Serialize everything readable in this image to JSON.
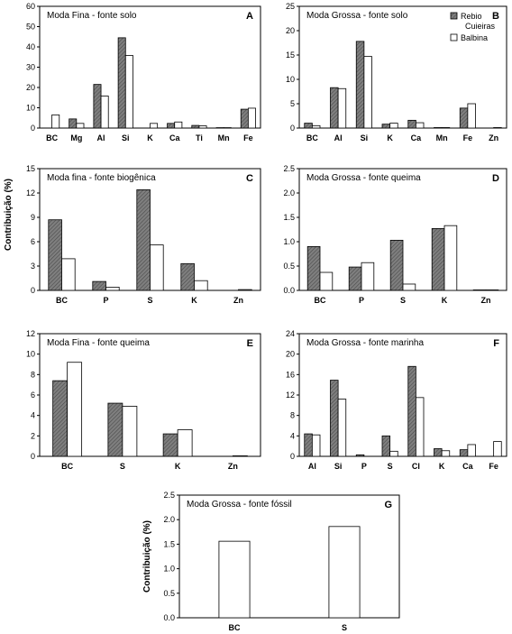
{
  "figure": {
    "ylabel": "Contribuição (%)",
    "colors": {
      "Rebio Cuieiras": "#7f7f7f",
      "Balbina": "#ffffff",
      "hatch_line": "#3a3a3a"
    }
  },
  "chart_data": [
    {
      "id": "A",
      "letter": "A",
      "type": "bar",
      "title": "Moda Fina -  fonte solo",
      "categories": [
        "BC",
        "Mg",
        "Al",
        "Si",
        "K",
        "Ca",
        "Ti",
        "Mn",
        "Fe"
      ],
      "yticks": [
        0,
        10,
        20,
        30,
        40,
        50,
        60
      ],
      "ylim": [
        0,
        60
      ],
      "series": [
        {
          "name": "Rebio Cuieiras",
          "values": [
            0,
            4.5,
            21.5,
            44.5,
            0,
            2.3,
            1.3,
            0.2,
            9.3
          ]
        },
        {
          "name": "Balbina",
          "values": [
            6.5,
            2.3,
            15.8,
            35.8,
            2.3,
            3.0,
            1.1,
            0.2,
            9.8
          ]
        }
      ]
    },
    {
      "id": "B",
      "letter": "B",
      "type": "bar",
      "title": "Moda Grossa - fonte solo",
      "categories": [
        "BC",
        "Al",
        "Si",
        "K",
        "Ca",
        "Mn",
        "Fe",
        "Zn"
      ],
      "yticks": [
        0,
        5,
        10,
        15,
        20,
        25
      ],
      "ylim": [
        0,
        25
      ],
      "legend": [
        "Rebio Cuieiras",
        "Balbina"
      ],
      "series": [
        {
          "name": "Rebio Cuieiras",
          "values": [
            1.0,
            8.3,
            17.8,
            0.8,
            1.6,
            0.1,
            4.1,
            0
          ]
        },
        {
          "name": "Balbina",
          "values": [
            0.5,
            8.1,
            14.7,
            1.0,
            1.1,
            0.1,
            5.0,
            0.1
          ]
        }
      ]
    },
    {
      "id": "C",
      "letter": "C",
      "type": "bar",
      "title": "Moda fina - fonte biogênica",
      "categories": [
        "BC",
        "P",
        "S",
        "K",
        "Zn"
      ],
      "yticks": [
        0,
        3,
        6,
        9,
        12,
        15
      ],
      "ylim": [
        0,
        15
      ],
      "series": [
        {
          "name": "Rebio Cuieiras",
          "values": [
            8.7,
            1.1,
            12.4,
            3.3,
            0
          ]
        },
        {
          "name": "Balbina",
          "values": [
            3.9,
            0.4,
            5.6,
            1.2,
            0.1
          ]
        }
      ]
    },
    {
      "id": "D",
      "letter": "D",
      "type": "bar",
      "title": "Moda Grossa - fonte queima",
      "categories": [
        "BC",
        "P",
        "S",
        "K",
        "Zn"
      ],
      "yticks": [
        "0.0",
        "0.5",
        "1.0",
        "1.5",
        "2.0",
        "2.5"
      ],
      "ylim": [
        0,
        2.5
      ],
      "series": [
        {
          "name": "Rebio Cuieiras",
          "values": [
            0.9,
            0.48,
            1.03,
            1.27,
            0.01
          ]
        },
        {
          "name": "Balbina",
          "values": [
            0.37,
            0.57,
            0.13,
            1.33,
            0.01
          ]
        }
      ]
    },
    {
      "id": "E",
      "letter": "E",
      "type": "bar",
      "title": "Moda Fina - fonte queima",
      "categories": [
        "BC",
        "S",
        "K",
        "Zn"
      ],
      "yticks": [
        0,
        2,
        4,
        6,
        8,
        10,
        12
      ],
      "ylim": [
        0,
        12
      ],
      "series": [
        {
          "name": "Rebio Cuieiras",
          "values": [
            7.4,
            5.2,
            2.2,
            0
          ]
        },
        {
          "name": "Balbina",
          "values": [
            9.2,
            4.9,
            2.6,
            0.05
          ]
        }
      ]
    },
    {
      "id": "F",
      "letter": "F",
      "type": "bar",
      "title": "Moda Grossa - fonte marinha",
      "categories": [
        "Al",
        "Si",
        "P",
        "S",
        "Cl",
        "K",
        "Ca",
        "Fe"
      ],
      "yticks": [
        0,
        4,
        8,
        12,
        16,
        20,
        24
      ],
      "ylim": [
        0,
        24
      ],
      "series": [
        {
          "name": "Rebio Cuieiras",
          "values": [
            4.4,
            14.9,
            0.3,
            4.0,
            17.6,
            1.5,
            1.3,
            0
          ]
        },
        {
          "name": "Balbina",
          "values": [
            4.2,
            11.2,
            0,
            1.0,
            11.5,
            1.1,
            2.3,
            2.9
          ]
        }
      ]
    },
    {
      "id": "G",
      "letter": "G",
      "type": "bar",
      "title": "Moda Grossa - fonte fóssil",
      "categories": [
        "BC",
        "S"
      ],
      "yticks": [
        "0.0",
        "0.5",
        "1.0",
        "1.5",
        "2.0",
        "2.5"
      ],
      "ylim": [
        0,
        2.5
      ],
      "show_ylabel": true,
      "series": [
        {
          "name": "Balbina",
          "values": [
            1.56,
            1.86
          ]
        }
      ]
    }
  ]
}
